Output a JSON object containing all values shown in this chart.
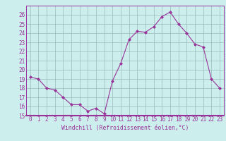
{
  "x": [
    0,
    1,
    2,
    3,
    4,
    5,
    6,
    7,
    8,
    9,
    10,
    11,
    12,
    13,
    14,
    15,
    16,
    17,
    18,
    19,
    20,
    21,
    22,
    23
  ],
  "y": [
    19.2,
    19.0,
    18.0,
    17.8,
    17.0,
    16.2,
    16.2,
    15.5,
    15.8,
    15.2,
    18.8,
    20.7,
    23.3,
    24.2,
    24.1,
    24.7,
    25.8,
    26.3,
    25.0,
    24.0,
    22.8,
    22.5,
    19.0,
    18.0
  ],
  "line_color": "#993399",
  "marker": "D",
  "marker_size": 2,
  "bg_color": "#cceeed",
  "grid_color": "#99bbbb",
  "xlabel": "Windchill (Refroidissement éolien,°C)",
  "tick_color": "#993399",
  "ylim": [
    15,
    27
  ],
  "yticks": [
    15,
    16,
    17,
    18,
    19,
    20,
    21,
    22,
    23,
    24,
    25,
    26
  ],
  "xlim": [
    -0.5,
    23.5
  ],
  "xticks": [
    0,
    1,
    2,
    3,
    4,
    5,
    6,
    7,
    8,
    9,
    10,
    11,
    12,
    13,
    14,
    15,
    16,
    17,
    18,
    19,
    20,
    21,
    22,
    23
  ],
  "tick_fontsize": 5.5,
  "xlabel_fontsize": 5.8
}
